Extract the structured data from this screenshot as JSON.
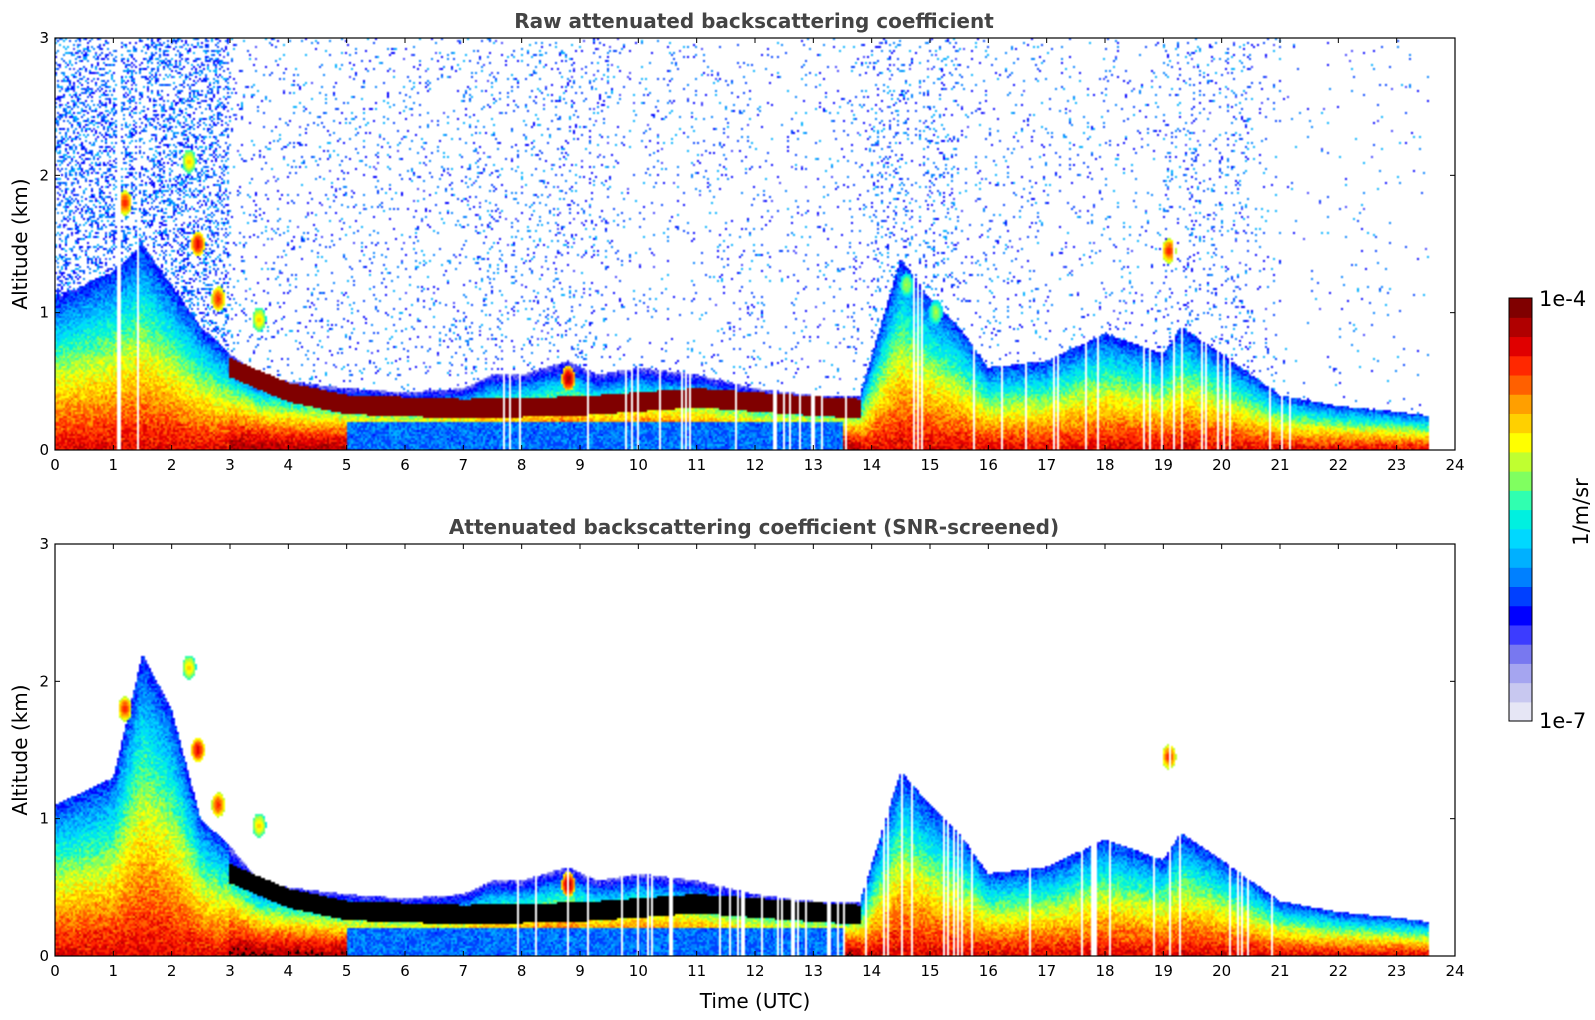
{
  "colors": {
    "palette": [
      "#e6e6f5",
      "#c8c8f0",
      "#a5a5f0",
      "#7878f0",
      "#3c3cff",
      "#0000ff",
      "#0040ff",
      "#0080ff",
      "#00b0ff",
      "#00d8ff",
      "#00f0e0",
      "#30ffb0",
      "#80ff60",
      "#c0ff30",
      "#ffff00",
      "#ffd000",
      "#ff9f00",
      "#ff6000",
      "#ff2800",
      "#e00000",
      "#b00000",
      "#800000"
    ],
    "strong_mask": "#000000",
    "title": "#444444"
  },
  "colorbar": {
    "label": "1/m/sr",
    "max_label": "1e-4",
    "min_label": "1e-7",
    "min_value": 1e-07,
    "max_value": 0.0001,
    "scale": "log"
  },
  "xaxis": {
    "label": "Time (UTC)"
  },
  "chart_data": [
    {
      "type": "heatmap",
      "title": "Raw attenuated backscattering coefficient",
      "xlabel": "",
      "ylabel": "Altitude (km)",
      "xlim": [
        0,
        24
      ],
      "ylim": [
        0,
        3
      ],
      "x_ticks": [
        "0",
        "1",
        "2",
        "3",
        "4",
        "5",
        "6",
        "7",
        "8",
        "9",
        "10",
        "11",
        "12",
        "13",
        "14",
        "15",
        "16",
        "17",
        "18",
        "19",
        "20",
        "21",
        "22",
        "23",
        "24"
      ],
      "y_ticks": [
        "0",
        "1",
        "2",
        "3"
      ],
      "screened": false,
      "data_end_hour": 23.55,
      "boundary_layer_top_km": [
        [
          0,
          1.1
        ],
        [
          1,
          1.3
        ],
        [
          1.5,
          1.5
        ],
        [
          2,
          1.2
        ],
        [
          2.5,
          0.9
        ],
        [
          3,
          0.7
        ],
        [
          3.5,
          0.55
        ],
        [
          4,
          0.5
        ],
        [
          5,
          0.45
        ],
        [
          6,
          0.42
        ],
        [
          7,
          0.45
        ],
        [
          7.5,
          0.55
        ],
        [
          8,
          0.55
        ],
        [
          8.8,
          0.65
        ],
        [
          9.3,
          0.55
        ],
        [
          10,
          0.6
        ],
        [
          11,
          0.55
        ],
        [
          12,
          0.45
        ],
        [
          13,
          0.4
        ],
        [
          13.8,
          0.4
        ],
        [
          14.5,
          1.4
        ],
        [
          15,
          1.1
        ],
        [
          15.5,
          0.9
        ],
        [
          16,
          0.6
        ],
        [
          17,
          0.65
        ],
        [
          18,
          0.85
        ],
        [
          19,
          0.7
        ],
        [
          19.3,
          0.9
        ],
        [
          20,
          0.7
        ],
        [
          21,
          0.4
        ],
        [
          22,
          0.32
        ],
        [
          23,
          0.28
        ],
        [
          23.55,
          0.25
        ]
      ],
      "residual_layer_km": [
        [
          3,
          0.6
        ],
        [
          4,
          0.42
        ],
        [
          5,
          0.33
        ],
        [
          7,
          0.3
        ],
        [
          9,
          0.32
        ],
        [
          11,
          0.38
        ],
        [
          12,
          0.35
        ],
        [
          13,
          0.32
        ],
        [
          13.8,
          0.3
        ]
      ],
      "elevated_features": [
        {
          "t": 1.2,
          "z": 1.8,
          "level": 0.85
        },
        {
          "t": 2.3,
          "z": 2.1,
          "level": 0.7
        },
        {
          "t": 2.45,
          "z": 1.5,
          "level": 0.9
        },
        {
          "t": 2.8,
          "z": 1.1,
          "level": 0.85
        },
        {
          "t": 3.5,
          "z": 0.95,
          "level": 0.7
        },
        {
          "t": 8.8,
          "z": 0.52,
          "level": 0.95
        },
        {
          "t": 19.1,
          "z": 1.45,
          "level": 0.85
        },
        {
          "t": 14.6,
          "z": 1.2,
          "level": 0.6
        },
        {
          "t": 15.1,
          "z": 1.0,
          "level": 0.6
        }
      ]
    },
    {
      "type": "heatmap",
      "title": "Attenuated backscattering coefficient (SNR-screened)",
      "xlabel": "Time (UTC)",
      "ylabel": "Altitude (km)",
      "xlim": [
        0,
        24
      ],
      "ylim": [
        0,
        3
      ],
      "x_ticks": [
        "0",
        "1",
        "2",
        "3",
        "4",
        "5",
        "6",
        "7",
        "8",
        "9",
        "10",
        "11",
        "12",
        "13",
        "14",
        "15",
        "16",
        "17",
        "18",
        "19",
        "20",
        "21",
        "22",
        "23",
        "24"
      ],
      "y_ticks": [
        "0",
        "1",
        "2",
        "3"
      ],
      "screened": true,
      "data_end_hour": 23.55,
      "boundary_layer_top_km": [
        [
          0,
          1.1
        ],
        [
          1,
          1.3
        ],
        [
          1.5,
          2.2
        ],
        [
          2,
          1.8
        ],
        [
          2.5,
          1.0
        ],
        [
          3,
          0.8
        ],
        [
          3.5,
          0.55
        ],
        [
          4,
          0.5
        ],
        [
          5,
          0.45
        ],
        [
          6,
          0.42
        ],
        [
          7,
          0.45
        ],
        [
          7.5,
          0.55
        ],
        [
          8,
          0.55
        ],
        [
          8.8,
          0.65
        ],
        [
          9.3,
          0.55
        ],
        [
          10,
          0.6
        ],
        [
          11,
          0.55
        ],
        [
          12,
          0.45
        ],
        [
          13,
          0.4
        ],
        [
          13.8,
          0.4
        ],
        [
          14.5,
          1.35
        ],
        [
          15,
          1.1
        ],
        [
          15.5,
          0.9
        ],
        [
          16,
          0.6
        ],
        [
          17,
          0.65
        ],
        [
          18,
          0.85
        ],
        [
          19,
          0.7
        ],
        [
          19.3,
          0.9
        ],
        [
          20,
          0.7
        ],
        [
          21,
          0.4
        ],
        [
          22,
          0.32
        ],
        [
          23,
          0.28
        ],
        [
          23.55,
          0.25
        ]
      ],
      "residual_layer_km": [
        [
          3,
          0.6
        ],
        [
          4,
          0.42
        ],
        [
          5,
          0.33
        ],
        [
          7,
          0.3
        ],
        [
          9,
          0.32
        ],
        [
          11,
          0.38
        ],
        [
          12,
          0.35
        ],
        [
          13,
          0.32
        ],
        [
          13.8,
          0.3
        ]
      ],
      "elevated_features": [
        {
          "t": 1.2,
          "z": 1.8,
          "level": 0.85
        },
        {
          "t": 2.3,
          "z": 2.1,
          "level": 0.7
        },
        {
          "t": 2.45,
          "z": 1.5,
          "level": 0.9
        },
        {
          "t": 2.8,
          "z": 1.1,
          "level": 0.85
        },
        {
          "t": 3.5,
          "z": 0.95,
          "level": 0.7
        },
        {
          "t": 8.8,
          "z": 0.52,
          "level": 0.95
        },
        {
          "t": 19.1,
          "z": 1.45,
          "level": 0.85
        }
      ]
    }
  ]
}
